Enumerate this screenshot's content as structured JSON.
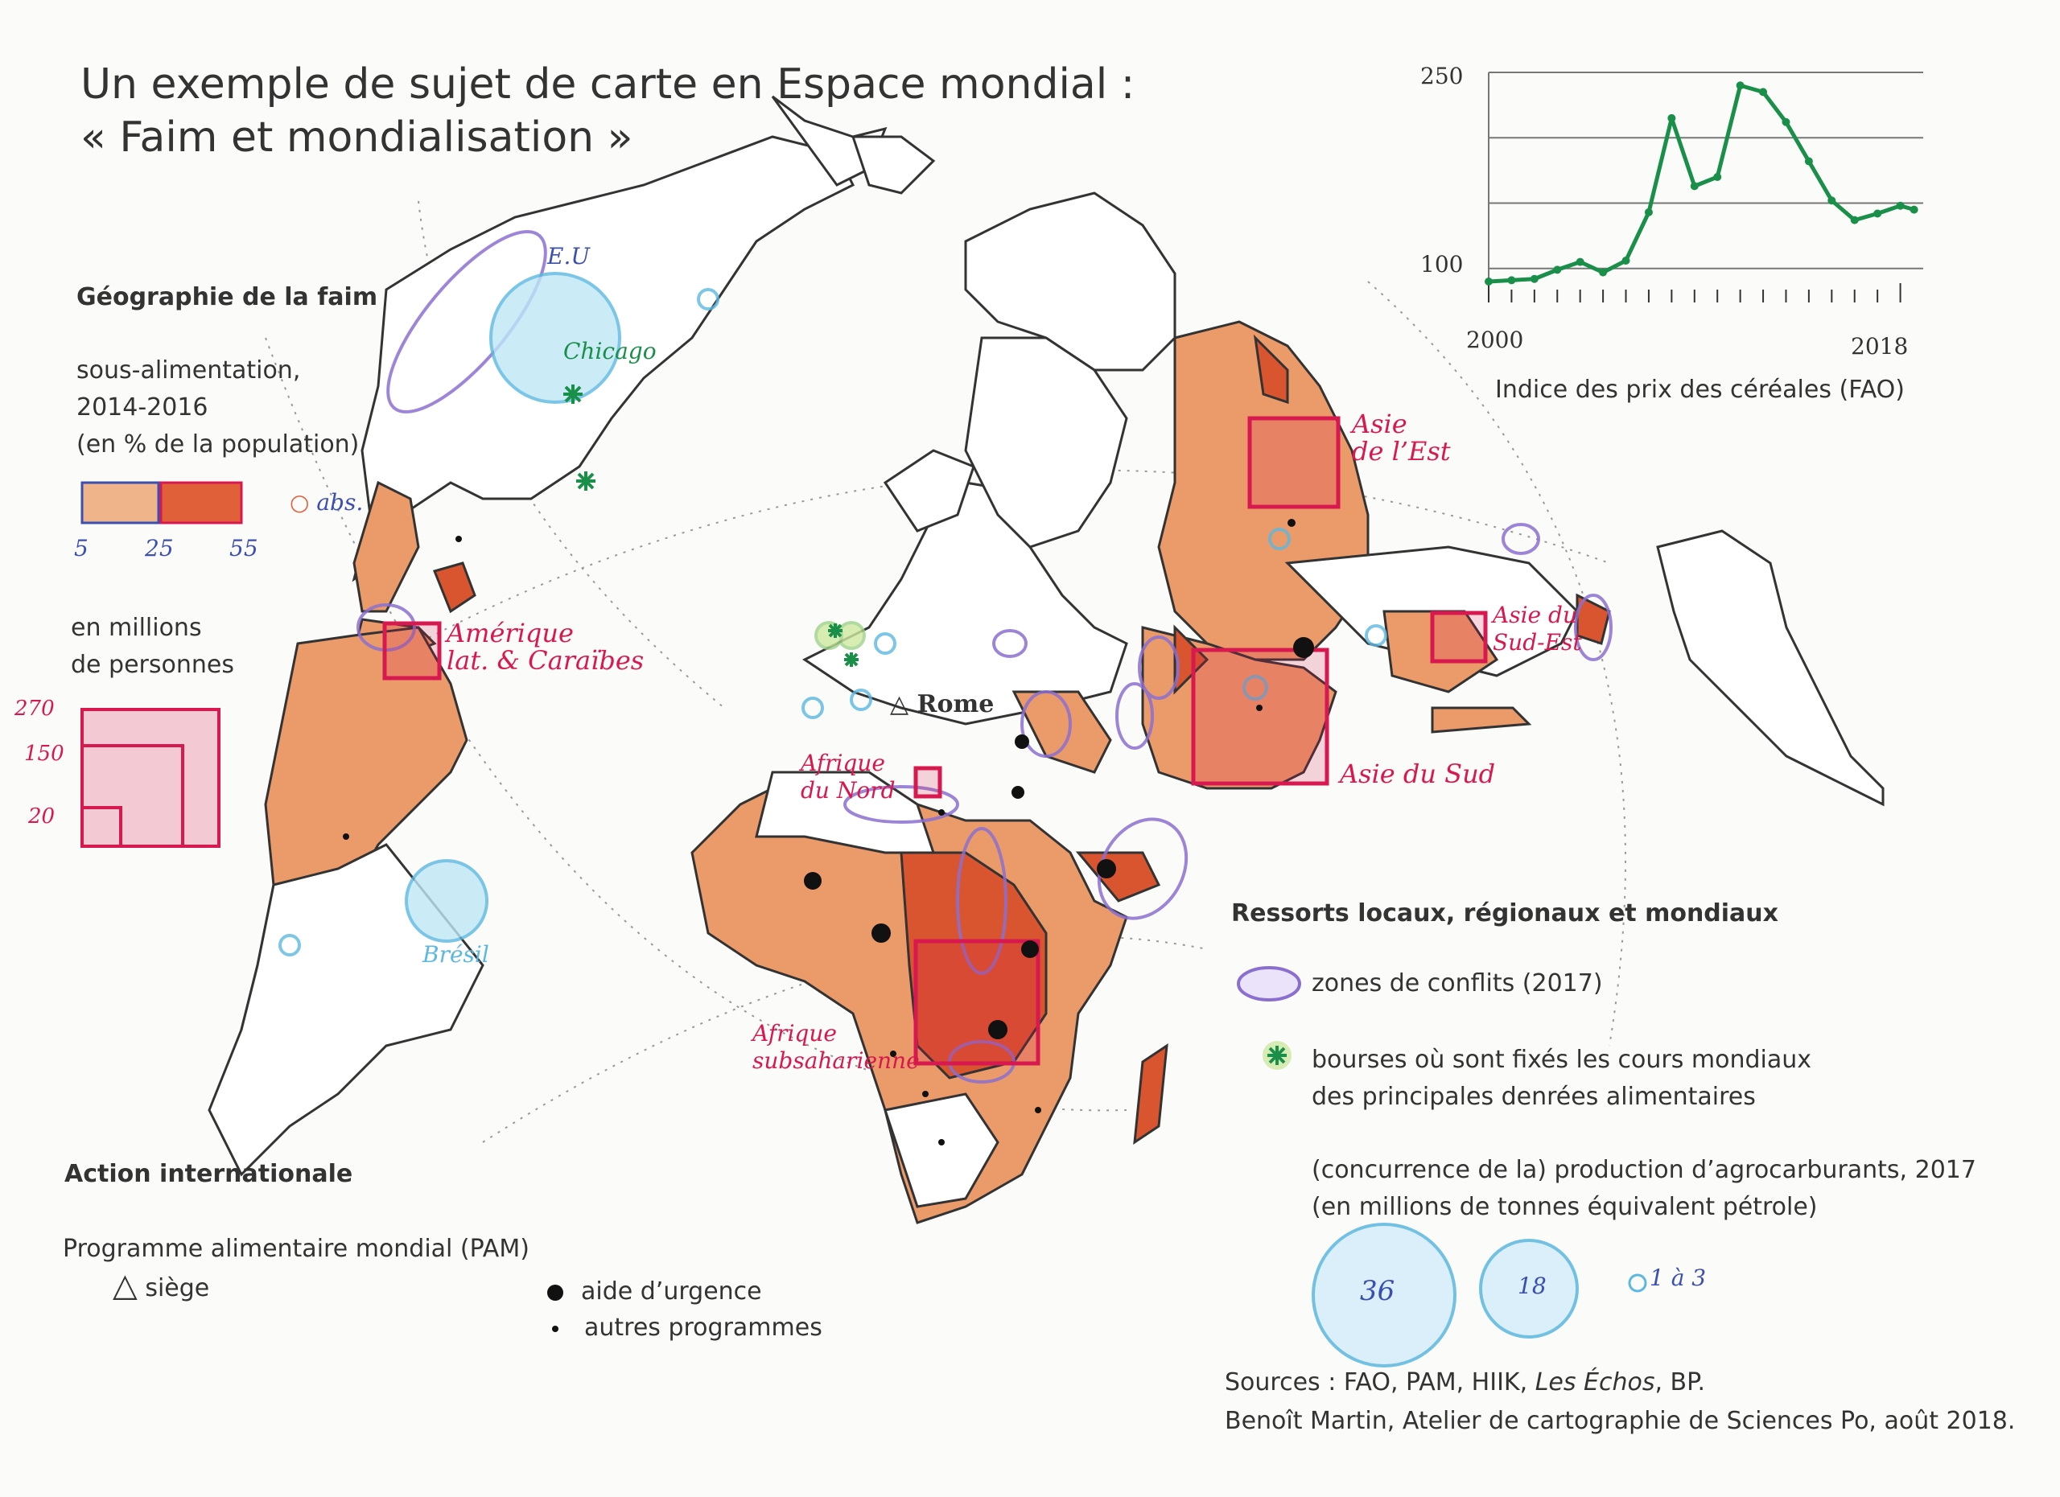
{
  "title": {
    "line1": "Un exemple de sujet de carte en Espace mondial :",
    "line2": "« Faim et mondialisation »"
  },
  "legend_geo": {
    "heading": "Géographie de la faim",
    "under_label": "sous-alimentation,\n2014-2016\n(en % de la population)",
    "under_ticks": [
      "5",
      "25",
      "55"
    ],
    "abs_label": "abs.",
    "millions_label": "en millions\nde personnes",
    "millions_ticks": [
      "270",
      "150",
      "20"
    ]
  },
  "legend_action": {
    "heading": "Action internationale",
    "pam_label": "Programme alimentaire mondial (PAM)",
    "siege": "siège",
    "urgence": "aide d’urgence",
    "autres": "autres programmes"
  },
  "legend_ressorts": {
    "heading": "Ressorts locaux, régionaux et mondiaux",
    "conflits": "zones de conflits (2017)",
    "bourses": "bourses où sont fixés les cours mondiaux\ndes principales denrées alimentaires",
    "agro": "(concurrence de la) production d’agrocarburants, 2017\n(en millions de tonnes équivalent pétrole)",
    "agro_values": [
      "36",
      "18",
      "1 à 3"
    ]
  },
  "sources": {
    "line1_a": "Sources : FAO, PAM, HIIK, ",
    "line1_b": "Les Échos",
    "line1_c": ", BP.",
    "line2": "Benoît Martin, Atelier de cartographie de Sciences Po, août 2018."
  },
  "map_labels": {
    "eu": "E.U",
    "chicago": "Chicago",
    "amerique": "Amérique\nlat. & Caraïbes",
    "bresil": "Brésil",
    "rome": "Rome",
    "afrique_nord": "Afrique\ndu Nord",
    "afrique_sub": "Afrique\nsubsaharienne",
    "asie_est": "Asie\nde l’Est",
    "asie_sud_est": "Asie du\nSud-Est",
    "asie_sud": "Asie du Sud"
  },
  "colors": {
    "red": "#d8194f",
    "orange": "#eb9a6a",
    "dark_orange": "#d9552f",
    "green": "#1a8f4a",
    "blue": "#5bb8e0",
    "purple": "#8b6fd0"
  },
  "chart_data": {
    "type": "line",
    "title": "Indice des prix des céréales (FAO)",
    "x_ticks": [
      "2000",
      "2018"
    ],
    "y_ticks": [
      "250",
      "100"
    ],
    "xlim": [
      2000,
      2019
    ],
    "ylim": [
      90,
      250
    ],
    "x": [
      2000,
      2001,
      2002,
      2003,
      2004,
      2005,
      2006,
      2007,
      2008,
      2009,
      2010,
      2011,
      2012,
      2013,
      2014,
      2015,
      2016,
      2017,
      2018,
      2018.6
    ],
    "series": [
      {
        "values": [
          90,
          91,
          92,
          99,
          105,
          97,
          106,
          143,
          215,
          163,
          170,
          240,
          235,
          212,
          182,
          152,
          137,
          142,
          148,
          145
        ]
      }
    ]
  }
}
